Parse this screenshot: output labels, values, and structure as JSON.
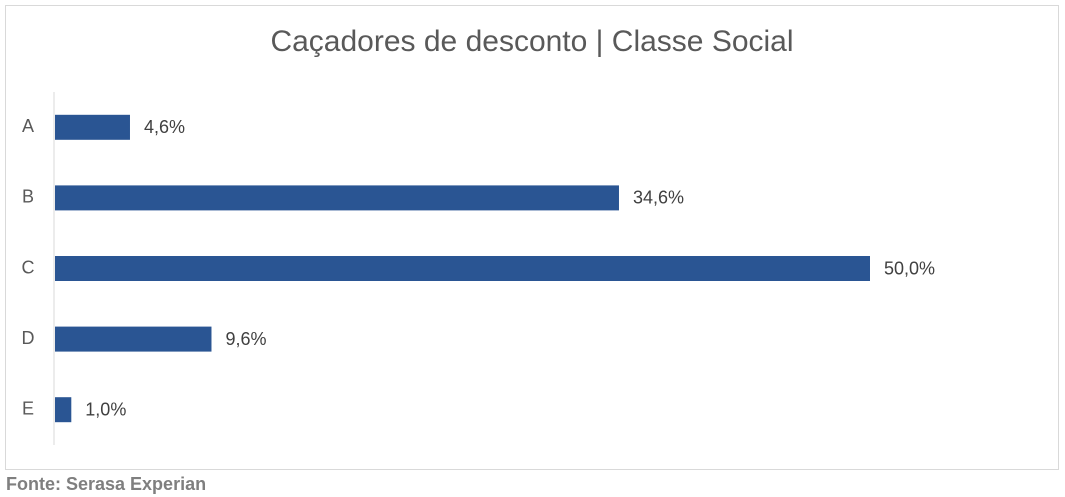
{
  "chart_data": {
    "type": "bar",
    "orientation": "horizontal",
    "title": "Caçadores de desconto | Classe Social",
    "categories": [
      "A",
      "B",
      "C",
      "D",
      "E"
    ],
    "values": [
      4.6,
      34.6,
      50.0,
      9.6,
      1.0
    ],
    "value_labels": [
      "4,6%",
      "34,6%",
      "50,0%",
      "9,6%",
      "1,0%"
    ],
    "color": "#2a5593",
    "source": "Fonte: Serasa Experian"
  }
}
